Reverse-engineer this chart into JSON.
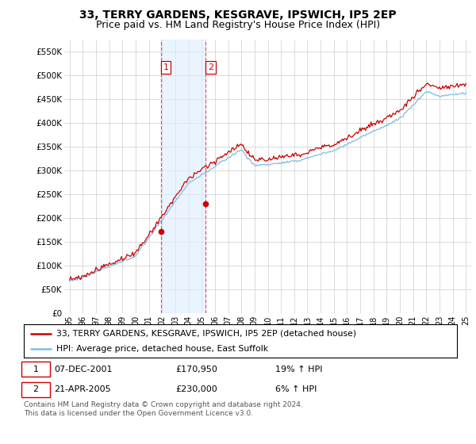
{
  "title": "33, TERRY GARDENS, KESGRAVE, IPSWICH, IP5 2EP",
  "subtitle": "Price paid vs. HM Land Registry's House Price Index (HPI)",
  "legend_line1": "33, TERRY GARDENS, KESGRAVE, IPSWICH, IP5 2EP (detached house)",
  "legend_line2": "HPI: Average price, detached house, East Suffolk",
  "table_rows": [
    {
      "num": "1",
      "date": "07-DEC-2001",
      "price": "£170,950",
      "hpi": "19% ↑ HPI"
    },
    {
      "num": "2",
      "date": "21-APR-2005",
      "price": "£230,000",
      "hpi": "6% ↑ HPI"
    }
  ],
  "footer": "Contains HM Land Registry data © Crown copyright and database right 2024.\nThis data is licensed under the Open Government Licence v3.0.",
  "sale1_year": 2001.92,
  "sale2_year": 2005.31,
  "sale1_price": 170950,
  "sale2_price": 230000,
  "ylim": [
    0,
    575000
  ],
  "yticks": [
    0,
    50000,
    100000,
    150000,
    200000,
    250000,
    300000,
    350000,
    400000,
    450000,
    500000,
    550000
  ],
  "ytick_labels": [
    "£0",
    "£50K",
    "£100K",
    "£150K",
    "£200K",
    "£250K",
    "£300K",
    "£350K",
    "£400K",
    "£450K",
    "£500K",
    "£550K"
  ],
  "xlim_min": 1994.6,
  "xlim_max": 2025.4,
  "hpi_color": "#7fbde0",
  "price_color": "#cc0000",
  "shade_color": "#ddeeff",
  "grid_color": "#cccccc",
  "background_color": "#ffffff",
  "title_fontsize": 10,
  "subtitle_fontsize": 9
}
